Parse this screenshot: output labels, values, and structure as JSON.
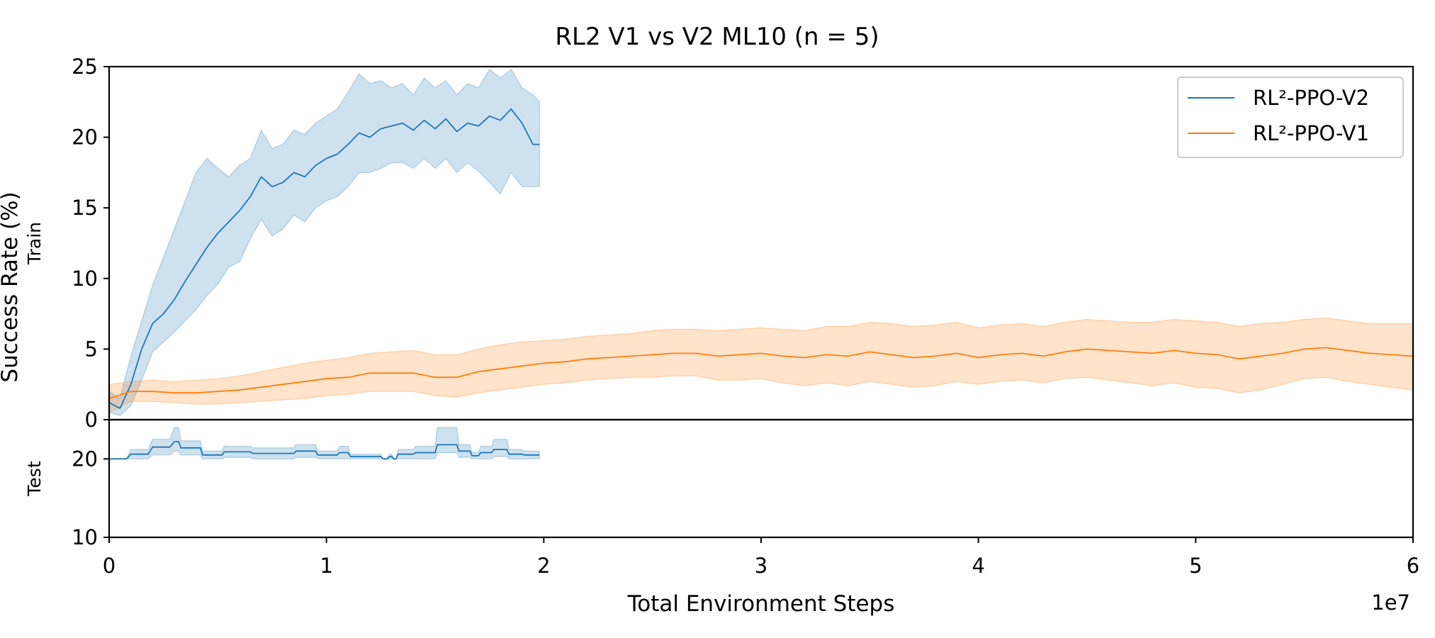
{
  "chart_data": {
    "type": "line",
    "title": "RL2 V1 vs V2 ML10 (n = 5)",
    "xlabel": "Total Environment Steps",
    "ylabel": "Success Rate (%)",
    "x_scale_label": "1e7",
    "x_ticks": [
      0,
      1,
      2,
      3,
      4,
      5,
      6
    ],
    "xlim": [
      0,
      60000000
    ],
    "grid": false,
    "legend_position": "top-right",
    "colors": {
      "RL²-PPO-V2": "#1f77b4",
      "RL²-PPO-V1": "#ff7f0e"
    },
    "panels": [
      {
        "name": "Train",
        "ylim": [
          0,
          25
        ],
        "y_ticks": [
          0,
          5,
          10,
          15,
          20,
          25
        ],
        "series": [
          {
            "name": "RL²-PPO-V2",
            "x": [
              0,
              500000,
              1000000,
              1500000,
              2000000,
              2500000,
              3000000,
              3500000,
              4000000,
              4500000,
              5000000,
              5500000,
              6000000,
              6500000,
              7000000,
              7500000,
              8000000,
              8500000,
              9000000,
              9500000,
              10000000,
              10500000,
              11000000,
              11500000,
              12000000,
              12500000,
              13000000,
              13500000,
              14000000,
              14500000,
              15000000,
              15500000,
              16000000,
              16500000,
              17000000,
              17500000,
              18000000,
              18500000,
              19000000,
              19500000,
              19800000
            ],
            "mean": [
              1.2,
              0.8,
              2.5,
              5.0,
              6.8,
              7.5,
              8.5,
              9.8,
              11.0,
              12.2,
              13.2,
              14.0,
              14.8,
              15.8,
              17.2,
              16.5,
              16.8,
              17.5,
              17.2,
              18.0,
              18.5,
              18.8,
              19.5,
              20.3,
              20.0,
              20.6,
              20.8,
              21.0,
              20.5,
              21.2,
              20.6,
              21.3,
              20.4,
              21.0,
              20.8,
              21.5,
              21.2,
              22.0,
              21.0,
              19.5,
              19.5
            ],
            "lower": [
              0.5,
              0.3,
              1.0,
              2.8,
              4.8,
              5.5,
              6.2,
              7.0,
              7.8,
              8.8,
              9.6,
              10.8,
              11.2,
              12.8,
              14.2,
              13.0,
              13.5,
              14.5,
              14.0,
              15.0,
              15.5,
              15.8,
              16.5,
              17.5,
              17.5,
              17.8,
              18.2,
              18.2,
              17.8,
              18.5,
              17.8,
              18.5,
              17.5,
              18.2,
              17.6,
              16.8,
              16.0,
              17.5,
              16.5,
              16.5,
              16.5
            ],
            "upper": [
              2.0,
              1.5,
              4.5,
              7.0,
              9.5,
              11.5,
              13.5,
              15.5,
              17.5,
              18.5,
              17.8,
              17.2,
              18.0,
              18.5,
              20.5,
              19.2,
              19.5,
              20.5,
              20.2,
              21.0,
              21.5,
              22.0,
              23.2,
              24.5,
              23.8,
              24.0,
              23.5,
              23.8,
              23.0,
              24.2,
              23.5,
              24.0,
              23.0,
              23.8,
              23.5,
              24.8,
              24.2,
              24.8,
              23.5,
              23.0,
              22.5
            ]
          },
          {
            "name": "RL²-PPO-V1",
            "x": [
              0,
              1000000,
              2000000,
              3000000,
              4000000,
              5000000,
              6000000,
              7000000,
              8000000,
              9000000,
              10000000,
              11000000,
              12000000,
              13000000,
              14000000,
              15000000,
              16000000,
              17000000,
              18000000,
              19000000,
              20000000,
              21000000,
              22000000,
              23000000,
              24000000,
              25000000,
              26000000,
              27000000,
              28000000,
              29000000,
              30000000,
              31000000,
              32000000,
              33000000,
              34000000,
              35000000,
              36000000,
              37000000,
              38000000,
              39000000,
              40000000,
              41000000,
              42000000,
              43000000,
              44000000,
              45000000,
              46000000,
              47000000,
              48000000,
              49000000,
              50000000,
              51000000,
              52000000,
              53000000,
              54000000,
              55000000,
              56000000,
              57000000,
              58000000,
              59000000,
              60000000
            ],
            "mean": [
              1.5,
              2.0,
              2.0,
              1.9,
              1.9,
              2.0,
              2.1,
              2.3,
              2.5,
              2.7,
              2.9,
              3.0,
              3.3,
              3.3,
              3.3,
              3.0,
              3.0,
              3.4,
              3.6,
              3.8,
              4.0,
              4.1,
              4.3,
              4.4,
              4.5,
              4.6,
              4.7,
              4.7,
              4.5,
              4.6,
              4.7,
              4.5,
              4.4,
              4.6,
              4.5,
              4.8,
              4.6,
              4.4,
              4.5,
              4.7,
              4.4,
              4.6,
              4.7,
              4.5,
              4.8,
              5.0,
              4.9,
              4.8,
              4.7,
              4.9,
              4.7,
              4.6,
              4.3,
              4.5,
              4.7,
              5.0,
              5.1,
              4.9,
              4.7,
              4.6,
              4.5
            ],
            "lower": [
              0.5,
              1.3,
              1.3,
              1.2,
              1.1,
              1.1,
              1.2,
              1.3,
              1.4,
              1.5,
              1.7,
              1.8,
              2.0,
              2.0,
              2.0,
              1.7,
              1.6,
              1.9,
              2.1,
              2.3,
              2.5,
              2.6,
              2.8,
              2.9,
              3.0,
              3.0,
              3.1,
              3.1,
              2.8,
              2.8,
              2.9,
              2.6,
              2.4,
              2.6,
              2.4,
              2.7,
              2.5,
              2.3,
              2.4,
              2.7,
              2.5,
              2.7,
              2.8,
              2.6,
              2.9,
              3.0,
              2.8,
              2.6,
              2.4,
              2.6,
              2.3,
              2.2,
              1.9,
              2.1,
              2.5,
              2.9,
              3.0,
              2.7,
              2.5,
              2.3,
              2.1
            ],
            "upper": [
              2.5,
              2.7,
              2.8,
              2.7,
              2.8,
              2.9,
              3.1,
              3.4,
              3.7,
              4.0,
              4.2,
              4.4,
              4.7,
              4.8,
              4.9,
              4.6,
              4.6,
              5.0,
              5.3,
              5.5,
              5.6,
              5.7,
              5.9,
              6.0,
              6.1,
              6.3,
              6.4,
              6.4,
              6.3,
              6.4,
              6.5,
              6.4,
              6.3,
              6.6,
              6.6,
              6.9,
              6.8,
              6.6,
              6.7,
              6.9,
              6.5,
              6.7,
              6.8,
              6.6,
              6.9,
              7.1,
              7.0,
              6.9,
              6.9,
              7.1,
              7.0,
              6.9,
              6.6,
              6.8,
              6.9,
              7.1,
              7.2,
              7.0,
              6.8,
              6.8,
              6.8
            ]
          }
        ]
      },
      {
        "name": "Test",
        "ylim": [
          10,
          25
        ],
        "y_ticks": [
          10,
          20
        ],
        "series": [
          {
            "name": "RL²-PPO-V2",
            "x": [
              0,
              800000,
              1000000,
              1800000,
              2000000,
              2800000,
              3000000,
              3200000,
              3300000,
              4200000,
              4300000,
              5200000,
              5300000,
              6500000,
              6600000,
              8500000,
              8600000,
              9500000,
              9600000,
              10500000,
              10600000,
              11000000,
              11100000,
              12500000,
              12600000,
              12800000,
              12900000,
              13000000,
              13100000,
              13200000,
              13300000,
              14000000,
              14100000,
              15000000,
              15100000,
              16000000,
              16100000,
              16600000,
              16700000,
              17000000,
              17100000,
              17600000,
              17700000,
              18300000,
              18400000,
              19000000,
              19100000,
              19800000
            ],
            "mean": [
              20.0,
              20.0,
              20.6,
              20.6,
              21.5,
              21.5,
              22.2,
              22.2,
              21.4,
              21.4,
              20.5,
              20.5,
              20.9,
              20.9,
              20.7,
              20.7,
              21.0,
              21.0,
              20.5,
              20.5,
              20.8,
              20.8,
              20.3,
              20.3,
              20.0,
              20.0,
              20.3,
              20.3,
              20.0,
              20.0,
              20.6,
              20.6,
              20.8,
              20.8,
              21.8,
              21.8,
              21.0,
              21.0,
              20.4,
              20.4,
              20.8,
              20.8,
              21.2,
              21.2,
              20.6,
              20.6,
              20.5,
              20.5
            ],
            "lower": [
              20.0,
              20.0,
              20.0,
              20.0,
              20.5,
              20.5,
              21.0,
              21.0,
              20.5,
              20.5,
              20.0,
              20.0,
              20.2,
              20.2,
              20.0,
              20.0,
              20.2,
              20.2,
              20.0,
              20.0,
              20.0,
              20.0,
              20.0,
              20.0,
              20.0,
              20.0,
              20.0,
              20.0,
              20.0,
              20.0,
              20.0,
              20.0,
              20.0,
              20.0,
              20.8,
              20.8,
              20.2,
              20.2,
              20.0,
              20.0,
              20.0,
              20.0,
              20.3,
              20.3,
              20.0,
              20.0,
              20.0,
              20.0
            ],
            "upper": [
              20.0,
              20.0,
              21.2,
              21.2,
              22.5,
              22.5,
              24.0,
              24.0,
              22.3,
              22.3,
              21.0,
              21.0,
              21.6,
              21.6,
              21.4,
              21.4,
              21.8,
              21.8,
              21.0,
              21.0,
              21.6,
              21.6,
              20.6,
              20.6,
              20.0,
              20.0,
              20.6,
              20.6,
              20.0,
              20.0,
              21.2,
              21.2,
              21.6,
              21.6,
              24.0,
              24.0,
              21.8,
              21.8,
              20.8,
              20.8,
              21.6,
              21.6,
              22.5,
              22.5,
              21.2,
              21.2,
              21.0,
              21.0
            ]
          }
        ]
      }
    ]
  }
}
